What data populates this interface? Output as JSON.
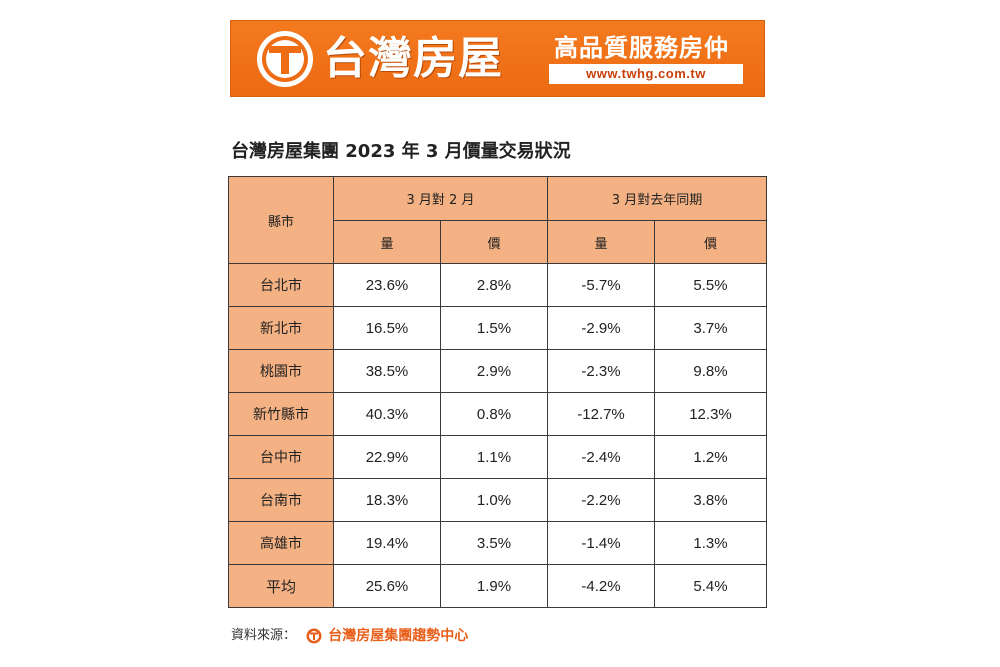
{
  "banner": {
    "brand": "台灣房屋",
    "slogan": "高品質服務房仲",
    "url": "www.twhg.com.tw",
    "logo_icon": "twhg-logo-icon",
    "colors": {
      "background": "#ee6c14",
      "text": "#ffffff",
      "url_text": "#c9400a"
    }
  },
  "title": "台灣房屋集團 2023 年 3 月價量交易狀況",
  "table": {
    "header": {
      "region": "縣市",
      "group_mom": "3 月對 2 月",
      "group_yoy": "3 月對去年同期",
      "volume": "量",
      "price": "價"
    },
    "rows": [
      {
        "region": "台北市",
        "mom_volume": "23.6%",
        "mom_price": "2.8%",
        "yoy_volume": "-5.7%",
        "yoy_price": "5.5%"
      },
      {
        "region": "新北市",
        "mom_volume": "16.5%",
        "mom_price": "1.5%",
        "yoy_volume": "-2.9%",
        "yoy_price": "3.7%"
      },
      {
        "region": "桃園市",
        "mom_volume": "38.5%",
        "mom_price": "2.9%",
        "yoy_volume": "-2.3%",
        "yoy_price": "9.8%"
      },
      {
        "region": "新竹縣市",
        "mom_volume": "40.3%",
        "mom_price": "0.8%",
        "yoy_volume": "-12.7%",
        "yoy_price": "12.3%"
      },
      {
        "region": "台中市",
        "mom_volume": "22.9%",
        "mom_price": "1.1%",
        "yoy_volume": "-2.4%",
        "yoy_price": "1.2%"
      },
      {
        "region": "台南市",
        "mom_volume": "18.3%",
        "mom_price": "1.0%",
        "yoy_volume": "-2.2%",
        "yoy_price": "3.8%"
      },
      {
        "region": "高雄市",
        "mom_volume": "19.4%",
        "mom_price": "3.5%",
        "yoy_volume": "-1.4%",
        "yoy_price": "1.3%"
      },
      {
        "region": "平均",
        "mom_volume": "25.6%",
        "mom_price": "1.9%",
        "yoy_volume": "-4.2%",
        "yoy_price": "5.4%"
      }
    ],
    "colors": {
      "header_bg": "#f4b183",
      "border": "#3a3a3a"
    }
  },
  "source": {
    "label": "資料來源：",
    "name": "台灣房屋集團趨勢中心",
    "logo_icon": "twhg-small-logo-icon",
    "color": "#e8601c"
  }
}
